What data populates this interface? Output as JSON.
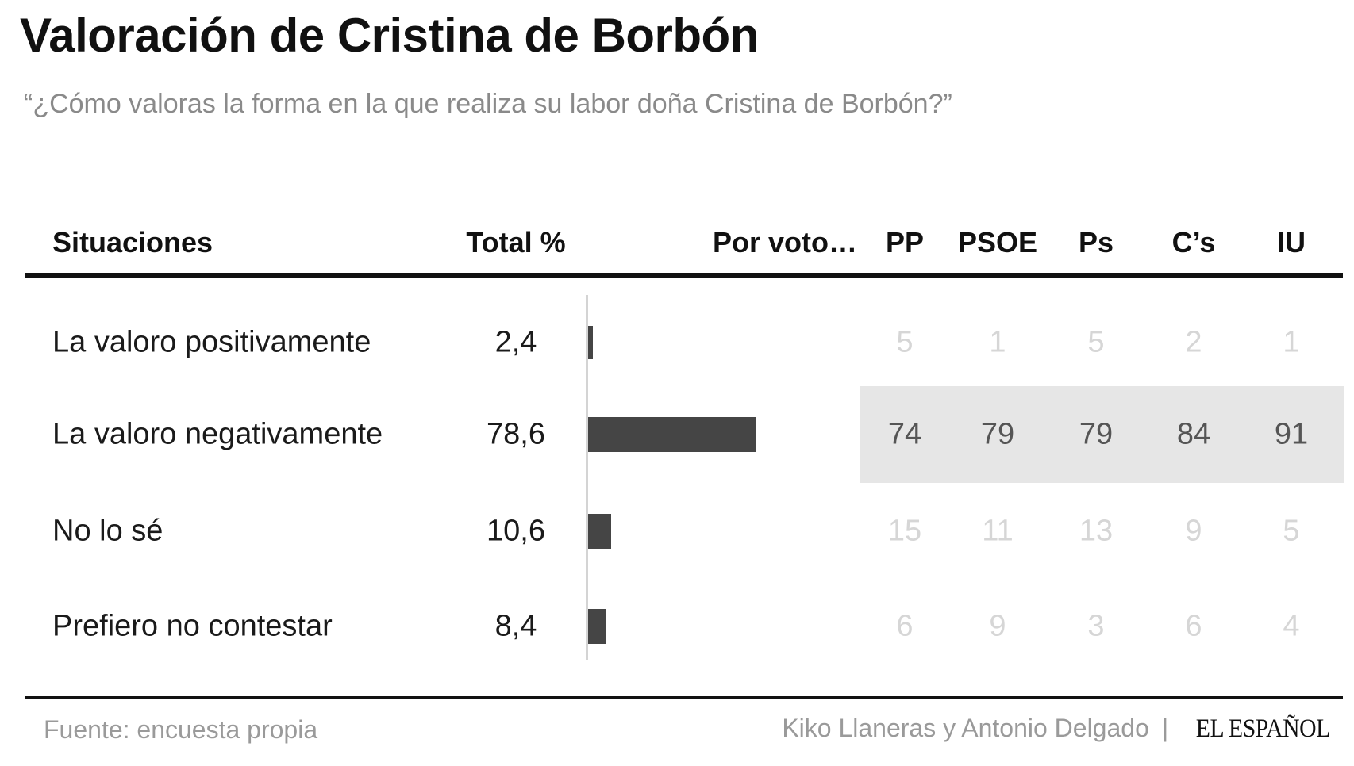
{
  "title": "Valoración de Cristina de Borbón",
  "subtitle": "“¿Cómo valoras la forma en la que realiza su labor doña Cristina de Borbón?”",
  "headers": {
    "situaciones": "Situaciones",
    "total": "Total %",
    "por_voto": "Por voto…",
    "parties": [
      "PP",
      "PSOE",
      "Ps",
      "C’s",
      "IU"
    ]
  },
  "chart_data": {
    "type": "table",
    "columns": [
      "Situaciones",
      "Total %",
      "PP",
      "PSOE",
      "Ps",
      "C’s",
      "IU"
    ],
    "rows": [
      {
        "label": "La valoro positivamente",
        "total": 2.4,
        "total_text": "2,4",
        "by_party": [
          5,
          1,
          5,
          2,
          1
        ]
      },
      {
        "label": "La valoro negativamente",
        "total": 78.6,
        "total_text": "78,6",
        "by_party": [
          74,
          79,
          79,
          84,
          91
        ],
        "highlighted": true
      },
      {
        "label": "No lo sé",
        "total": 10.6,
        "total_text": "10,6",
        "by_party": [
          15,
          11,
          13,
          9,
          5
        ]
      },
      {
        "label": "Prefiero no contestar",
        "total": 8.4,
        "total_text": "8,4",
        "by_party": [
          6,
          9,
          3,
          6,
          4
        ]
      }
    ],
    "bar_color": "#454545",
    "highlight_color": "#e6e6e6"
  },
  "footer": {
    "source": "Fuente: encuesta propia",
    "authors": "Kiko Llaneras y Antonio Delgado",
    "separator": "|",
    "brand": "EL ESPAÑOL"
  }
}
